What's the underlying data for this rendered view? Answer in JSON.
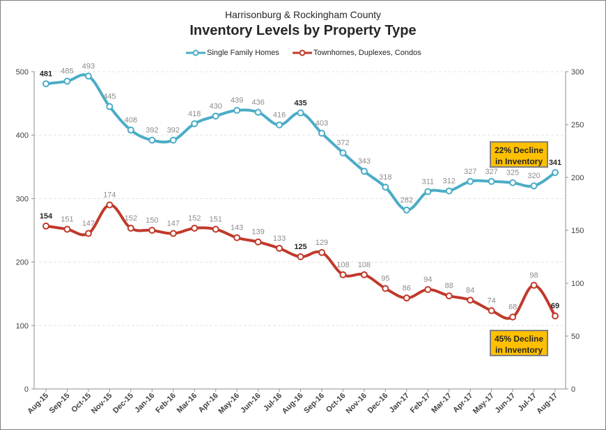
{
  "header": {
    "subtitle": "Harrisonburg & Rockingham County",
    "title": "Inventory Levels by Property Type"
  },
  "callouts": {
    "sfh": [
      "22% Decline",
      "in Inventory"
    ],
    "town": [
      "45% Decline",
      "in Inventory"
    ]
  },
  "chart_data": {
    "type": "line",
    "title": "Inventory Levels by Property Type",
    "subtitle": "Harrisonburg & Rockingham County",
    "categories": [
      "Aug-15",
      "Sep-15",
      "Oct-15",
      "Nov-15",
      "Dec-15",
      "Jan-16",
      "Feb-16",
      "Mar-16",
      "Apr-16",
      "May-16",
      "Jun-16",
      "Jul-16",
      "Aug-16",
      "Sep-16",
      "Oct-16",
      "Nov-16",
      "Dec-16",
      "Jan-17",
      "Feb-17",
      "Mar-17",
      "Apr-17",
      "May-17",
      "Jun-17",
      "Jul-17",
      "Aug-17"
    ],
    "left_axis": {
      "min": 0,
      "max": 500,
      "ticks": [
        0,
        100,
        200,
        300,
        400,
        500
      ]
    },
    "right_axis": {
      "min": 0,
      "max": 300,
      "ticks": [
        0,
        50,
        100,
        150,
        200,
        250,
        300
      ]
    },
    "legend_position": "top",
    "grid": true,
    "series": [
      {
        "name": "Single Family Homes",
        "axis": "left",
        "color": "#4bacc6",
        "values": [
          481,
          485,
          493,
          445,
          408,
          392,
          392,
          418,
          430,
          439,
          436,
          416,
          435,
          403,
          372,
          343,
          318,
          282,
          311,
          312,
          327,
          327,
          325,
          320,
          341
        ],
        "bold_labels": [
          0,
          12,
          24
        ]
      },
      {
        "name": "Townhomes, Duplexes, Condos",
        "axis": "right",
        "color": "#c0392b",
        "values": [
          154,
          151,
          147,
          174,
          152,
          150,
          147,
          152,
          151,
          143,
          139,
          133,
          125,
          129,
          108,
          108,
          95,
          86,
          94,
          88,
          84,
          74,
          68,
          98,
          69
        ],
        "bold_labels": [
          0,
          12,
          24
        ]
      }
    ]
  }
}
